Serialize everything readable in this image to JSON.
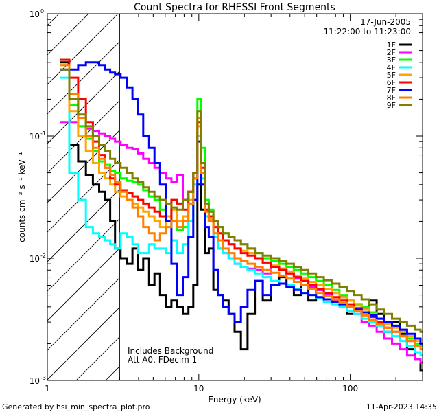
{
  "chart_data": {
    "type": "line",
    "scale": {
      "x": "log",
      "y": "log"
    },
    "title": "Count Spectra for RHESSI Front Segments",
    "xlabel": "Energy (keV)",
    "ylabel": "counts cm⁻² s⁻¹ keV⁻¹",
    "xlim": [
      1,
      300
    ],
    "ylim": [
      0.001,
      1
    ],
    "x_ticks": [
      {
        "value": 1,
        "label": "1"
      },
      {
        "value": 10,
        "label": "10"
      },
      {
        "value": 100,
        "label": "100"
      }
    ],
    "y_ticks": [
      {
        "value": 0.001,
        "base": "10",
        "exp": "-3"
      },
      {
        "value": 0.01,
        "base": "10",
        "exp": "-2"
      },
      {
        "value": 0.1,
        "base": "10",
        "exp": "-1"
      },
      {
        "value": 1,
        "base": "10",
        "exp": "0"
      }
    ],
    "date": "17-Jun-2005",
    "time_range": "11:22:00 to 11:23:00",
    "hatched_region": {
      "x_max": 3
    },
    "annotations": [
      "Includes Background",
      "Att A0, FDecim 1"
    ],
    "legend_position": "top-right",
    "x": [
      1.3,
      1.5,
      1.7,
      1.9,
      2.1,
      2.3,
      2.5,
      2.7,
      2.9,
      3.2,
      3.5,
      3.8,
      4.1,
      4.5,
      4.9,
      5.3,
      5.8,
      6.3,
      6.9,
      7.5,
      8.2,
      8.9,
      9.5,
      10.1,
      10.7,
      11.3,
      12,
      13,
      14,
      15,
      16.5,
      18,
      20,
      22,
      25,
      28,
      32,
      36,
      40,
      45,
      50,
      56,
      63,
      71,
      80,
      90,
      100,
      112,
      126,
      141,
      158,
      178,
      200,
      224,
      251,
      282,
      300
    ],
    "series": [
      {
        "name": "1F",
        "color": "#000000",
        "values": [
          0.4,
          0.085,
          0.062,
          0.048,
          0.04,
          0.035,
          0.03,
          0.02,
          0.012,
          0.01,
          0.009,
          0.012,
          0.008,
          0.01,
          0.006,
          0.0075,
          0.005,
          0.004,
          0.0045,
          0.004,
          0.0035,
          0.004,
          0.006,
          0.04,
          0.025,
          0.011,
          0.012,
          0.0055,
          0.005,
          0.0045,
          0.0035,
          0.0025,
          0.0018,
          0.0035,
          0.0065,
          0.0045,
          0.006,
          0.007,
          0.006,
          0.005,
          0.0065,
          0.0045,
          0.0055,
          0.0052,
          0.0045,
          0.0048,
          0.0035,
          0.0042,
          0.0038,
          0.0045,
          0.0035,
          0.0025,
          0.003,
          0.0024,
          0.0018,
          0.0015,
          0.0012
        ]
      },
      {
        "name": "2F",
        "color": "#ff00ff",
        "values": [
          0.13,
          0.13,
          0.12,
          0.115,
          0.11,
          0.105,
          0.1,
          0.095,
          0.09,
          0.085,
          0.08,
          0.078,
          0.072,
          0.065,
          0.06,
          0.055,
          0.05,
          0.045,
          0.042,
          0.048,
          0.03,
          0.035,
          0.05,
          0.12,
          0.05,
          0.022,
          0.02,
          0.015,
          0.012,
          0.011,
          0.01,
          0.009,
          0.0085,
          0.0082,
          0.008,
          0.0075,
          0.0085,
          0.0082,
          0.0075,
          0.0068,
          0.0065,
          0.0058,
          0.0055,
          0.005,
          0.0045,
          0.0042,
          0.004,
          0.0035,
          0.003,
          0.0028,
          0.0025,
          0.0022,
          0.002,
          0.0018,
          0.0016,
          0.0015,
          0.0014
        ]
      },
      {
        "name": "3F",
        "color": "#00ff00",
        "values": [
          0.42,
          0.18,
          0.12,
          0.095,
          0.075,
          0.062,
          0.058,
          0.052,
          0.05,
          0.045,
          0.043,
          0.042,
          0.04,
          0.036,
          0.032,
          0.03,
          0.025,
          0.022,
          0.02,
          0.017,
          0.018,
          0.028,
          0.05,
          0.2,
          0.08,
          0.03,
          0.025,
          0.02,
          0.018,
          0.016,
          0.015,
          0.014,
          0.013,
          0.012,
          0.011,
          0.01,
          0.0095,
          0.009,
          0.0085,
          0.008,
          0.0075,
          0.007,
          0.0065,
          0.006,
          0.0055,
          0.005,
          0.0045,
          0.0042,
          0.004,
          0.0036,
          0.0032,
          0.003,
          0.0028,
          0.0025,
          0.0022,
          0.002,
          0.0019
        ]
      },
      {
        "name": "4F",
        "color": "#00ffff",
        "values": [
          0.3,
          0.05,
          0.03,
          0.018,
          0.016,
          0.015,
          0.014,
          0.013,
          0.012,
          0.016,
          0.015,
          0.013,
          0.011,
          0.011,
          0.013,
          0.012,
          0.012,
          0.011,
          0.014,
          0.011,
          0.013,
          0.02,
          0.04,
          0.1,
          0.045,
          0.022,
          0.02,
          0.015,
          0.012,
          0.011,
          0.01,
          0.009,
          0.0085,
          0.008,
          0.0075,
          0.007,
          0.0065,
          0.0062,
          0.006,
          0.0056,
          0.0052,
          0.005,
          0.0047,
          0.0044,
          0.0042,
          0.004,
          0.0037,
          0.0035,
          0.0032,
          0.003,
          0.0028,
          0.0025,
          0.0023,
          0.0021,
          0.0019,
          0.0017,
          0.0016
        ]
      },
      {
        "name": "5F",
        "color": "#ffa500",
        "values": [
          0.38,
          0.16,
          0.1,
          0.075,
          0.06,
          0.05,
          0.045,
          0.04,
          0.035,
          0.032,
          0.03,
          0.028,
          0.026,
          0.024,
          0.022,
          0.02,
          0.018,
          0.022,
          0.025,
          0.02,
          0.022,
          0.03,
          0.045,
          0.12,
          0.05,
          0.024,
          0.021,
          0.018,
          0.016,
          0.014,
          0.013,
          0.012,
          0.0115,
          0.011,
          0.01,
          0.0092,
          0.0087,
          0.0082,
          0.0078,
          0.0072,
          0.0068,
          0.0064,
          0.006,
          0.0056,
          0.0052,
          0.0048,
          0.0045,
          0.0041,
          0.0038,
          0.0035,
          0.0032,
          0.0029,
          0.0027,
          0.0025,
          0.0023,
          0.0021,
          0.002
        ]
      },
      {
        "name": "6F",
        "color": "#ff0000",
        "values": [
          0.42,
          0.3,
          0.2,
          0.13,
          0.09,
          0.07,
          0.055,
          0.045,
          0.04,
          0.036,
          0.034,
          0.032,
          0.03,
          0.028,
          0.026,
          0.024,
          0.022,
          0.02,
          0.03,
          0.028,
          0.025,
          0.035,
          0.05,
          0.13,
          0.055,
          0.025,
          0.022,
          0.018,
          0.016,
          0.014,
          0.013,
          0.012,
          0.011,
          0.0105,
          0.01,
          0.0092,
          0.0085,
          0.008,
          0.0075,
          0.007,
          0.0065,
          0.006,
          0.0056,
          0.0052,
          0.0048,
          0.0045,
          0.0042,
          0.0039,
          0.0036,
          0.0033,
          0.003,
          0.0027,
          0.0025,
          0.0023,
          0.0021,
          0.0019,
          0.0018
        ]
      },
      {
        "name": "7F",
        "color": "#0000ff",
        "values": [
          0.35,
          0.35,
          0.38,
          0.4,
          0.4,
          0.38,
          0.35,
          0.33,
          0.32,
          0.3,
          0.25,
          0.2,
          0.15,
          0.1,
          0.08,
          0.06,
          0.04,
          0.02,
          0.009,
          0.005,
          0.007,
          0.015,
          0.03,
          0.09,
          0.04,
          0.018,
          0.015,
          0.008,
          0.005,
          0.004,
          0.0035,
          0.003,
          0.004,
          0.0055,
          0.0065,
          0.005,
          0.006,
          0.0062,
          0.0058,
          0.0055,
          0.0052,
          0.005,
          0.0048,
          0.0046,
          0.0044,
          0.0042,
          0.004,
          0.0038,
          0.0036,
          0.0034,
          0.0032,
          0.003,
          0.0028,
          0.0026,
          0.0024,
          0.0022,
          0.002
        ]
      },
      {
        "name": "8F",
        "color": "#ff8000",
        "values": [
          0.38,
          0.22,
          0.14,
          0.1,
          0.08,
          0.065,
          0.055,
          0.048,
          0.042,
          0.035,
          0.03,
          0.026,
          0.022,
          0.018,
          0.016,
          0.014,
          0.016,
          0.018,
          0.02,
          0.018,
          0.02,
          0.028,
          0.045,
          0.14,
          0.05,
          0.024,
          0.02,
          0.016,
          0.014,
          0.012,
          0.011,
          0.01,
          0.0095,
          0.009,
          0.0085,
          0.008,
          0.0076,
          0.0072,
          0.0068,
          0.0064,
          0.006,
          0.0056,
          0.0052,
          0.0049,
          0.0046,
          0.0043,
          0.004,
          0.0037,
          0.0034,
          0.0031,
          0.0029,
          0.0027,
          0.0025,
          0.0023,
          0.0021,
          0.0019,
          0.0018
        ]
      },
      {
        "name": "9F",
        "color": "#808000",
        "values": [
          0.35,
          0.2,
          0.15,
          0.12,
          0.1,
          0.085,
          0.075,
          0.065,
          0.06,
          0.055,
          0.05,
          0.045,
          0.042,
          0.038,
          0.035,
          0.032,
          0.03,
          0.028,
          0.026,
          0.025,
          0.03,
          0.035,
          0.05,
          0.16,
          0.06,
          0.028,
          0.024,
          0.02,
          0.018,
          0.016,
          0.015,
          0.014,
          0.013,
          0.012,
          0.011,
          0.0105,
          0.01,
          0.0095,
          0.009,
          0.0085,
          0.008,
          0.0075,
          0.007,
          0.0066,
          0.0062,
          0.0058,
          0.0054,
          0.005,
          0.0046,
          0.0042,
          0.0038,
          0.0035,
          0.0032,
          0.003,
          0.0028,
          0.0026,
          0.0025
        ]
      }
    ]
  },
  "footer": {
    "generated_by": "Generated by hsi_min_spectra_plot.pro",
    "timestamp": "11-Apr-2023 14:35"
  }
}
